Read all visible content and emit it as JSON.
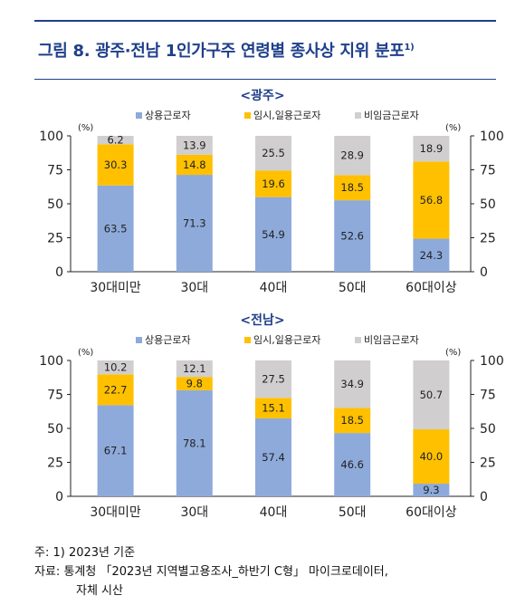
{
  "header": {
    "title": "그림 8. 광주·전남 1인가구주 연령별 종사상 지위 분포",
    "title_sup": "1)"
  },
  "colors": {
    "regular": "#8eaadb",
    "temporary": "#ffc000",
    "nonwage": "#d0cece",
    "accent": "#1f3f8a"
  },
  "legend": [
    "상용근로자",
    "임시,일용근로자",
    "비임금근로자"
  ],
  "chart_data": [
    {
      "type": "bar",
      "stacked": true,
      "title": "<광주>",
      "unit_label": "(%)",
      "categories": [
        "30대미만",
        "30대",
        "40대",
        "50대",
        "60대이상"
      ],
      "series": [
        {
          "name": "상용근로자",
          "values": [
            63.5,
            71.3,
            54.9,
            52.6,
            24.3
          ]
        },
        {
          "name": "임시,일용근로자",
          "values": [
            30.3,
            14.8,
            19.6,
            18.5,
            56.8
          ]
        },
        {
          "name": "비임금근로자",
          "values": [
            6.2,
            13.9,
            25.5,
            28.9,
            18.9
          ]
        }
      ],
      "ylim": [
        0,
        100
      ],
      "yticks": [
        0,
        25,
        50,
        75,
        100
      ],
      "legend_position": "top"
    },
    {
      "type": "bar",
      "stacked": true,
      "title": "<전남>",
      "unit_label": "(%)",
      "categories": [
        "30대미만",
        "30대",
        "40대",
        "50대",
        "60대이상"
      ],
      "series": [
        {
          "name": "상용근로자",
          "values": [
            67.1,
            78.1,
            57.4,
            46.6,
            9.3
          ]
        },
        {
          "name": "임시,일용근로자",
          "values": [
            22.7,
            9.8,
            15.1,
            18.5,
            40.0
          ]
        },
        {
          "name": "비임금근로자",
          "values": [
            10.2,
            12.1,
            27.5,
            34.9,
            50.7
          ]
        }
      ],
      "ylim": [
        0,
        100
      ],
      "yticks": [
        0,
        25,
        50,
        75,
        100
      ],
      "legend_position": "top"
    }
  ],
  "notes": {
    "note_prefix": "주:",
    "note_text": "1) 2023년 기준",
    "source_prefix": "자료:",
    "source_line1": "통계청 「2023년 지역별고용조사_하반기 C형」 마이크로데이터,",
    "source_line2": "자체 시산"
  }
}
